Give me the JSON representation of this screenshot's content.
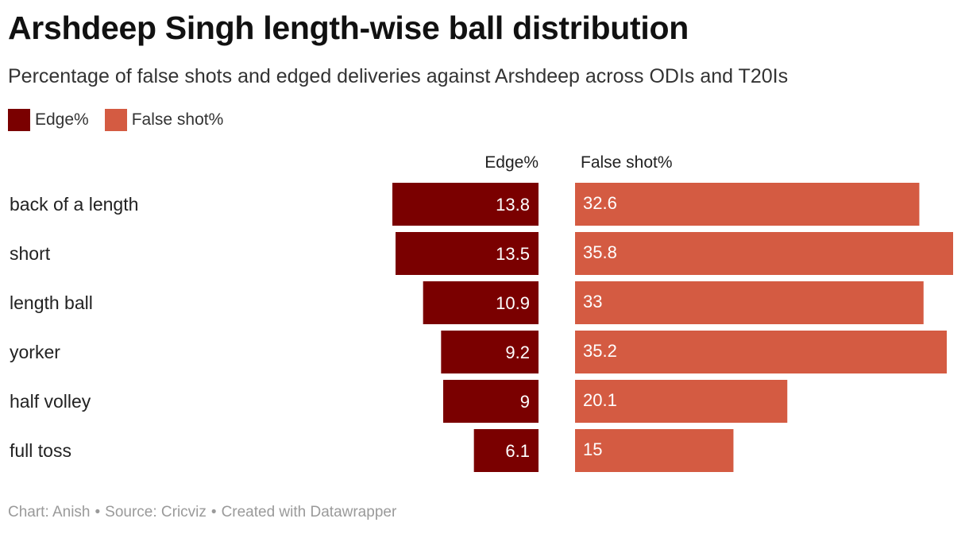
{
  "title": "Arshdeep Singh length-wise ball distribution",
  "subtitle": "Percentage of false shots and edged deliveries against Arshdeep across ODIs and T20Is",
  "colors": {
    "edge": "#7a0000",
    "false_shot": "#d45b42",
    "text_on_dark": "#ffffff"
  },
  "footer": {
    "chart": "Chart: Anish",
    "source": "Source: Cricviz",
    "created": "Created with Datawrapper",
    "separator": "•"
  },
  "chart_data": {
    "type": "bar",
    "title": "Arshdeep Singh length-wise ball distribution",
    "categories": [
      "back of a length",
      "short",
      "length ball",
      "yorker",
      "half volley",
      "full toss"
    ],
    "series": [
      {
        "name": "Edge%",
        "values": [
          13.8,
          13.5,
          10.9,
          9.2,
          9,
          6.1
        ]
      },
      {
        "name": "False shot%",
        "values": [
          32.6,
          35.8,
          33,
          35.2,
          20.1,
          15
        ]
      }
    ],
    "column_headers": [
      "Edge%",
      "False shot%"
    ],
    "legend": [
      "Edge%",
      "False shot%"
    ],
    "legend_position": "top-left",
    "grid": false,
    "xlabel": "",
    "ylabel": ""
  }
}
